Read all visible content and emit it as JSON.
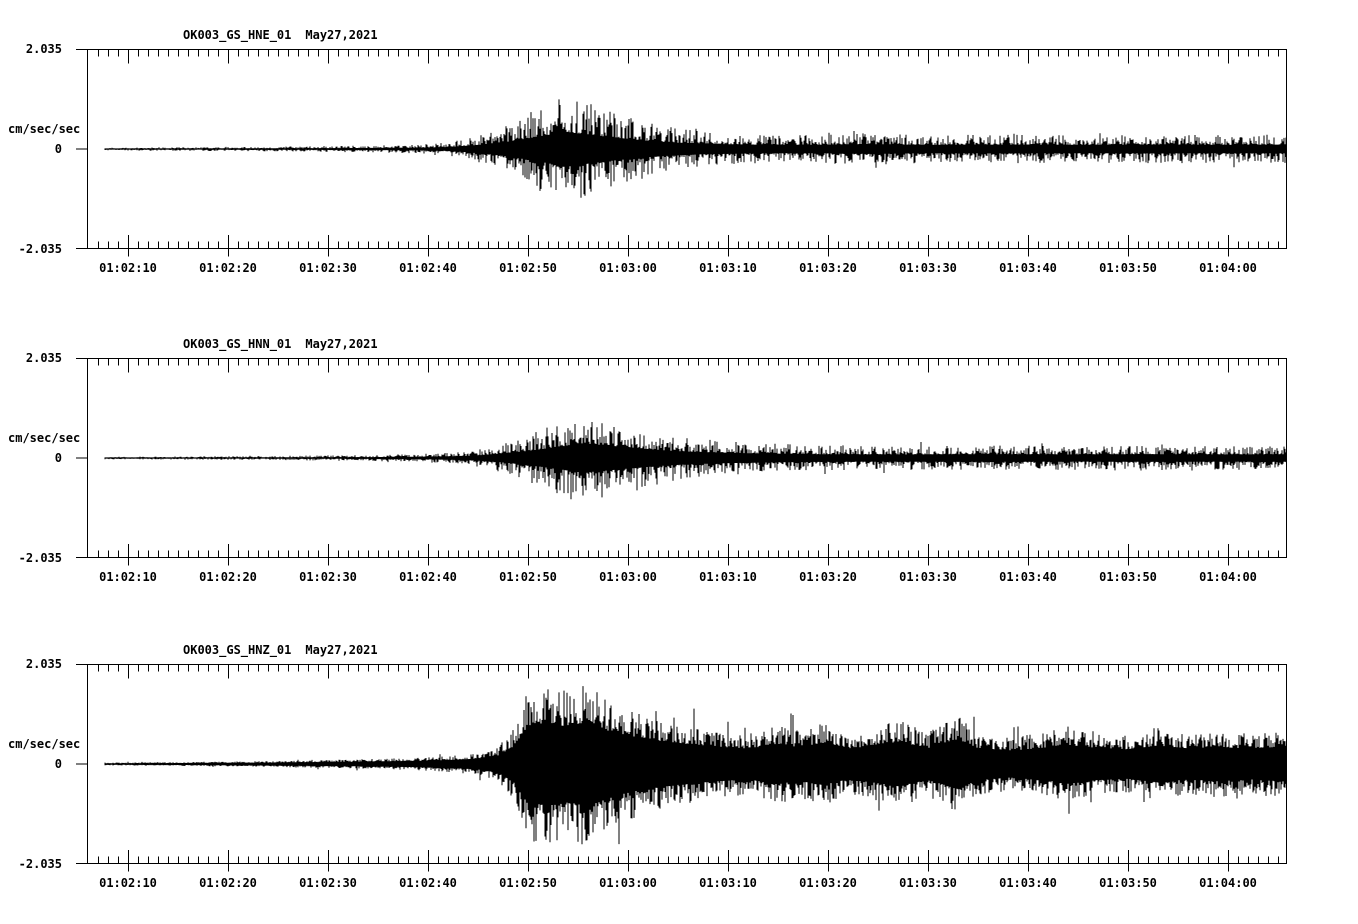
{
  "page": {
    "background": "#ffffff",
    "trace_color": "#000000"
  },
  "chart_data": [
    {
      "type": "line",
      "kind": "seismogram",
      "station_channel": "OK003_GS_HNE_01",
      "date": "May27,2021",
      "ylabel": "cm/sec/sec",
      "ytick_labels": [
        "2.035",
        "0",
        "-2.035"
      ],
      "ylim": [
        -2.035,
        2.035
      ],
      "xlim": [
        "01:02:06",
        "01:04:06"
      ],
      "x_major_tick_sec": 10,
      "x_minor_tick_sec": 1,
      "xtick_labels": [
        "01:02:10",
        "01:02:20",
        "01:02:30",
        "01:02:40",
        "01:02:50",
        "01:03:00",
        "01:03:10",
        "01:03:20",
        "01:03:30",
        "01:03:40",
        "01:03:50",
        "01:04:00"
      ],
      "envelope": {
        "description": "approx peak amplitude envelope (cm/sec/sec) vs seconds after 01:02:06",
        "t_sec": [
          1.7,
          10,
          20,
          28,
          33,
          36,
          38,
          40,
          42,
          44,
          46,
          47.5,
          49,
          51,
          53,
          56,
          59,
          62,
          66,
          72,
          78,
          84,
          92,
          100,
          108,
          114,
          120
        ],
        "amp": [
          0.03,
          0.04,
          0.05,
          0.07,
          0.09,
          0.13,
          0.22,
          0.34,
          0.5,
          0.72,
          0.95,
          1.2,
          1.05,
          0.9,
          0.75,
          0.55,
          0.42,
          0.35,
          0.3,
          0.28,
          0.33,
          0.28,
          0.3,
          0.28,
          0.3,
          0.28,
          0.3
        ]
      },
      "render": {
        "seed": 101,
        "floor": 0.3,
        "spike_pow": 2.4,
        "spike_chance": 0.02,
        "spike_gain": 1.35,
        "trace_start_sec": 1.7
      }
    },
    {
      "type": "line",
      "kind": "seismogram",
      "station_channel": "OK003_GS_HNN_01",
      "date": "May27,2021",
      "ylabel": "cm/sec/sec",
      "ytick_labels": [
        "2.035",
        "0",
        "-2.035"
      ],
      "ylim": [
        -2.035,
        2.035
      ],
      "xlim": [
        "01:02:06",
        "01:04:06"
      ],
      "x_major_tick_sec": 10,
      "x_minor_tick_sec": 1,
      "xtick_labels": [
        "01:02:10",
        "01:02:20",
        "01:02:30",
        "01:02:40",
        "01:02:50",
        "01:03:00",
        "01:03:10",
        "01:03:20",
        "01:03:30",
        "01:03:40",
        "01:03:50",
        "01:04:00"
      ],
      "envelope": {
        "description": "approx peak amplitude envelope (cm/sec/sec) vs seconds after 01:02:06",
        "t_sec": [
          1.7,
          10,
          20,
          28,
          34,
          38,
          40,
          42,
          44,
          46,
          48,
          49.5,
          51,
          53,
          56,
          59,
          63,
          68,
          74,
          82,
          90,
          98,
          106,
          114,
          120
        ],
        "amp": [
          0.025,
          0.035,
          0.045,
          0.06,
          0.09,
          0.14,
          0.22,
          0.33,
          0.48,
          0.65,
          0.85,
          1.0,
          0.9,
          0.78,
          0.6,
          0.46,
          0.36,
          0.3,
          0.25,
          0.24,
          0.26,
          0.24,
          0.26,
          0.24,
          0.25
        ]
      },
      "render": {
        "seed": 202,
        "floor": 0.3,
        "spike_pow": 2.4,
        "spike_chance": 0.02,
        "spike_gain": 1.35,
        "trace_start_sec": 1.7
      }
    },
    {
      "type": "line",
      "kind": "seismogram",
      "station_channel": "OK003_GS_HNZ_01",
      "date": "May27,2021",
      "ylabel": "cm/sec/sec",
      "ytick_labels": [
        "2.035",
        "0",
        "-2.035"
      ],
      "ylim": [
        -2.035,
        2.035
      ],
      "xlim": [
        "01:02:06",
        "01:04:06"
      ],
      "x_major_tick_sec": 10,
      "x_minor_tick_sec": 1,
      "xtick_labels": [
        "01:02:10",
        "01:02:20",
        "01:02:30",
        "01:02:40",
        "01:02:50",
        "01:03:00",
        "01:03:10",
        "01:03:20",
        "01:03:30",
        "01:03:40",
        "01:03:50",
        "01:04:00"
      ],
      "envelope": {
        "description": "approx peak amplitude envelope (cm/sec/sec) vs seconds after 01:02:06",
        "t_sec": [
          1.7,
          10,
          18,
          26,
          32,
          36,
          39,
          41,
          42.5,
          44,
          46,
          48,
          50,
          52,
          54,
          57,
          60,
          63,
          66,
          69,
          71,
          73.5,
          76,
          78.5,
          81,
          84,
          87,
          89,
          92,
          95,
          98,
          101,
          104,
          107,
          110,
          113,
          116,
          120
        ],
        "amp": [
          0.03,
          0.04,
          0.06,
          0.09,
          0.12,
          0.16,
          0.22,
          0.35,
          0.7,
          1.55,
          1.7,
          1.5,
          1.75,
          1.35,
          1.15,
          0.95,
          0.8,
          0.7,
          0.62,
          0.82,
          0.68,
          0.85,
          0.62,
          0.75,
          0.9,
          0.65,
          1.0,
          0.65,
          0.55,
          0.62,
          0.78,
          0.65,
          0.6,
          0.75,
          0.62,
          0.7,
          0.62,
          0.72
        ]
      },
      "render": {
        "seed": 303,
        "floor": 0.5,
        "spike_pow": 1.9,
        "spike_chance": 0.025,
        "spike_gain": 1.45,
        "trace_start_sec": 1.7
      }
    }
  ]
}
